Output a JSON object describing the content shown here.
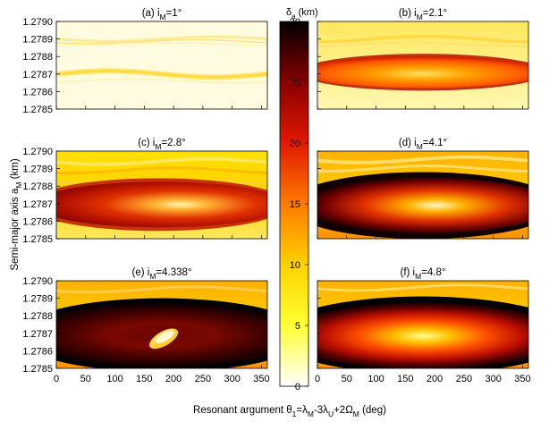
{
  "figure": {
    "ylabel_main": "Semi-major axis a",
    "ylabel_sub": "M",
    "ylabel_unit": " (km)",
    "xlabel_parts": [
      {
        "t": "Resonant argument θ",
        "s": 0
      },
      {
        "t": "1",
        "s": 1
      },
      {
        "t": "=λ",
        "s": 0
      },
      {
        "t": "M",
        "s": 1
      },
      {
        "t": "-3λ",
        "s": 0
      },
      {
        "t": "U",
        "s": 1
      },
      {
        "t": "+2Ω",
        "s": 0
      },
      {
        "t": "M",
        "s": 1
      },
      {
        "t": " (deg)",
        "s": 0
      }
    ],
    "colorbar_label": "δ",
    "colorbar_label_sub": "a",
    "colorbar_label_unit": " (km)"
  },
  "chart_data": {
    "type": "heatmap",
    "colormap": "hot (inverted: white=0, black=30)",
    "colorbar": {
      "min": 0,
      "max": 30,
      "ticks": [
        "0",
        "5",
        "10",
        "15",
        "20",
        "25",
        "30"
      ]
    },
    "x_axis": {
      "range": [
        0,
        360
      ],
      "ticks": [
        "0",
        "50",
        "100",
        "150",
        "200",
        "250",
        "300",
        "350"
      ]
    },
    "y_axis": {
      "range": [
        1.2785,
        1.279
      ],
      "ticks": [
        "1.2785",
        "1.2786",
        "1.2787",
        "1.2788",
        "1.2789",
        "1.2790"
      ]
    },
    "panels": [
      {
        "prefix": "(a) i",
        "sub": "M",
        "suffix": "=1°",
        "inclination_deg": 1,
        "center_a": 1.2787,
        "center_theta": 180,
        "feature": "thin bands",
        "max_delta": 5
      },
      {
        "prefix": "(b) i",
        "sub": "M",
        "suffix": "=2.1°",
        "inclination_deg": 2.1,
        "center_a": 1.2787,
        "center_theta": 180,
        "feature": "narrow resonance island",
        "max_delta": 25
      },
      {
        "prefix": "(c) i",
        "sub": "M",
        "suffix": "=2.8°",
        "inclination_deg": 2.8,
        "center_a": 1.2787,
        "center_theta": 180,
        "feature": "resonance island",
        "max_delta": 28
      },
      {
        "prefix": "(d) i",
        "sub": "M",
        "suffix": "=4.1°",
        "inclination_deg": 4.1,
        "center_a": 1.2787,
        "center_theta": 180,
        "feature": "chaotic separatrix",
        "max_delta": 30
      },
      {
        "prefix": "(e) i",
        "sub": "M",
        "suffix": "=4.338°",
        "inclination_deg": 4.338,
        "center_a": 1.2787,
        "center_theta": 180,
        "feature": "chaotic layer with spiral core",
        "max_delta": 30
      },
      {
        "prefix": "(f) i",
        "sub": "M",
        "suffix": "=4.8°",
        "inclination_deg": 4.8,
        "center_a": 1.2787,
        "center_theta": 180,
        "feature": "large chaotic island",
        "max_delta": 30
      }
    ]
  }
}
